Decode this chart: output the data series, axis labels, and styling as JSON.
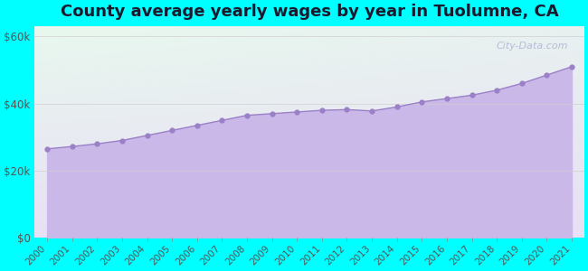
{
  "title": "County average yearly wages by year in Tuolumne, CA",
  "years": [
    2000,
    2001,
    2002,
    2003,
    2004,
    2005,
    2006,
    2007,
    2008,
    2009,
    2010,
    2011,
    2012,
    2013,
    2014,
    2015,
    2016,
    2017,
    2018,
    2019,
    2020,
    2021
  ],
  "wages": [
    26500,
    27200,
    28000,
    29000,
    30500,
    32000,
    33500,
    35000,
    36500,
    37000,
    37500,
    38000,
    38200,
    37800,
    39000,
    40500,
    41500,
    42500,
    44000,
    46000,
    48500,
    51000
  ],
  "yticks": [
    0,
    20000,
    40000,
    60000
  ],
  "ytick_labels": [
    "$0",
    "$20k",
    "$40k",
    "$60k"
  ],
  "ylim": [
    0,
    63000
  ],
  "fill_color": "#c9b8e8",
  "line_color": "#9b80c8",
  "marker_color": "#9b80c8",
  "bg_outer": "#00ffff",
  "bg_grad_topleft": "#e8f8ee",
  "bg_grad_bottomright": "#e8e0f5",
  "title_fontsize": 13,
  "title_color": "#1a1a2e",
  "watermark": "City-Data.com",
  "grid_color": "#d0d0d0",
  "tick_label_color": "#555555"
}
